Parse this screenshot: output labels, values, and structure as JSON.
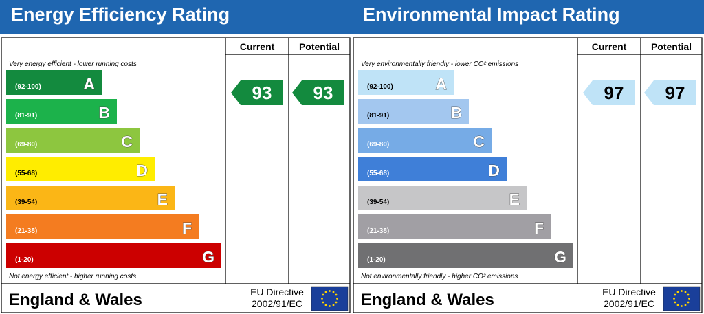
{
  "chart_data": [
    {
      "type": "bar",
      "title": "Energy Efficiency Rating",
      "top_note": "Very energy efficient - lower running costs",
      "bottom_note": "Not energy efficient - higher running costs",
      "columns": [
        "Current",
        "Potential"
      ],
      "bands": [
        {
          "letter": "A",
          "range": "(92-100)",
          "color": "#138a3e",
          "range_color": "#ffffff"
        },
        {
          "letter": "B",
          "range": "(81-91)",
          "color": "#1cb24b",
          "range_color": "#ffffff"
        },
        {
          "letter": "C",
          "range": "(69-80)",
          "color": "#8dc63f",
          "range_color": "#ffffff"
        },
        {
          "letter": "D",
          "range": "(55-68)",
          "color": "#ffed00",
          "range_color": "#000000"
        },
        {
          "letter": "E",
          "range": "(39-54)",
          "color": "#fbb616",
          "range_color": "#000000"
        },
        {
          "letter": "F",
          "range": "(21-38)",
          "color": "#f47c20",
          "range_color": "#ffffff"
        },
        {
          "letter": "G",
          "range": "(1-20)",
          "color": "#cc0000",
          "range_color": "#ffffff"
        }
      ],
      "current": {
        "value": 93,
        "color": "#138a3e",
        "text_color": "#ffffff"
      },
      "potential": {
        "value": 93,
        "color": "#138a3e",
        "text_color": "#ffffff"
      },
      "footer": {
        "region": "England & Wales",
        "directive_line1": "EU Directive",
        "directive_line2": "2002/91/EC"
      }
    },
    {
      "type": "bar",
      "title": "Environmental Impact Rating",
      "top_note": "Very environmentally friendly - lower CO² emissions",
      "bottom_note": "Not environmentally friendly - higher CO² emissions",
      "columns": [
        "Current",
        "Potential"
      ],
      "bands": [
        {
          "letter": "A",
          "range": "(92-100)",
          "color": "#bfe3f7",
          "range_color": "#000000"
        },
        {
          "letter": "B",
          "range": "(81-91)",
          "color": "#a3c7ef",
          "range_color": "#000000"
        },
        {
          "letter": "C",
          "range": "(69-80)",
          "color": "#76abe6",
          "range_color": "#ffffff"
        },
        {
          "letter": "D",
          "range": "(55-68)",
          "color": "#3f7fd8",
          "range_color": "#ffffff"
        },
        {
          "letter": "E",
          "range": "(39-54)",
          "color": "#c6c6c8",
          "range_color": "#000000"
        },
        {
          "letter": "F",
          "range": "(21-38)",
          "color": "#a19fa4",
          "range_color": "#ffffff"
        },
        {
          "letter": "G",
          "range": "(1-20)",
          "color": "#707072",
          "range_color": "#ffffff"
        }
      ],
      "current": {
        "value": 97,
        "color": "#bfe3f7",
        "text_color": "#000000"
      },
      "potential": {
        "value": 97,
        "color": "#bfe3f7",
        "text_color": "#000000"
      },
      "footer": {
        "region": "England & Wales",
        "directive_line1": "EU Directive",
        "directive_line2": "2002/91/EC"
      }
    }
  ],
  "icons": {
    "eu_flag": "eu-flag-icon",
    "eu_flag_color": "#1a3f9a",
    "eu_star_color": "#ffd400"
  }
}
